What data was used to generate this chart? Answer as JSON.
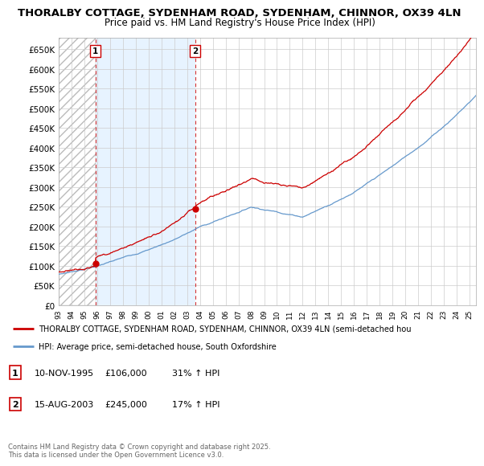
{
  "title": "THORALBY COTTAGE, SYDENHAM ROAD, SYDENHAM, CHINNOR, OX39 4LN",
  "subtitle": "Price paid vs. HM Land Registry's House Price Index (HPI)",
  "ylabel_ticks": [
    "£0",
    "£50K",
    "£100K",
    "£150K",
    "£200K",
    "£250K",
    "£300K",
    "£350K",
    "£400K",
    "£450K",
    "£500K",
    "£550K",
    "£600K",
    "£650K"
  ],
  "ylim": [
    0,
    680000
  ],
  "yticks": [
    0,
    50000,
    100000,
    150000,
    200000,
    250000,
    300000,
    350000,
    400000,
    450000,
    500000,
    550000,
    600000,
    650000
  ],
  "xlim_start": 1993.0,
  "xlim_end": 2025.5,
  "sale1_date": 1995.86,
  "sale1_price": 106000,
  "sale2_date": 2003.62,
  "sale2_price": 245000,
  "property_color": "#cc0000",
  "hpi_color": "#6699cc",
  "hpi_fill_color": "#ddeeff",
  "hatch_color": "#cccccc",
  "grid_color": "#cccccc",
  "legend_line1": "THORALBY COTTAGE, SYDENHAM ROAD, SYDENHAM, CHINNOR, OX39 4LN (semi-detached hou",
  "legend_line2": "HPI: Average price, semi-detached house, South Oxfordshire",
  "footer": "Contains HM Land Registry data © Crown copyright and database right 2025.\nThis data is licensed under the Open Government Licence v3.0."
}
